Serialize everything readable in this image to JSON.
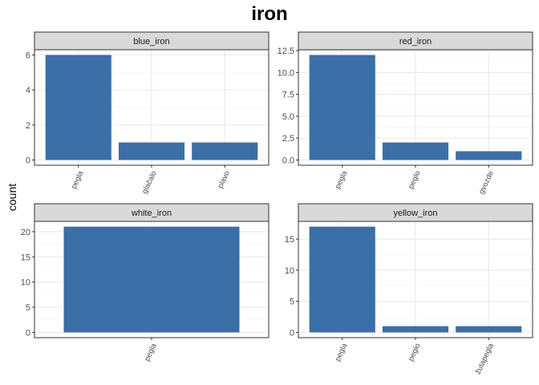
{
  "title": "iron",
  "ylabel": "count",
  "colors": {
    "bar": "#3a6fa8",
    "strip_fill": "#d9d9d9",
    "strip_border": "#333333",
    "grid_major": "#ebebeb",
    "grid_minor": "#f5f5f5",
    "panel_border": "#333333"
  },
  "chart_data": [
    {
      "type": "bar",
      "facet": "blue_iron",
      "categories": [
        "pegla",
        "glačalo",
        "plavo"
      ],
      "values": [
        6,
        1,
        1
      ],
      "ylim": [
        0,
        6.3
      ],
      "yticks": [
        0,
        2,
        4,
        6
      ],
      "ytick_labels": [
        "0",
        "2",
        "4",
        "6"
      ],
      "grid": true
    },
    {
      "type": "bar",
      "facet": "red_iron",
      "categories": [
        "pegla",
        "peglo",
        "gvozde"
      ],
      "values": [
        12,
        2,
        1
      ],
      "ylim": [
        0,
        12.6
      ],
      "yticks": [
        0,
        2.5,
        5,
        7.5,
        10,
        12.5
      ],
      "ytick_labels": [
        "0.0",
        "2.5",
        "5.0",
        "7.5",
        "10.0",
        "12.5"
      ],
      "grid": true
    },
    {
      "type": "bar",
      "facet": "white_iron",
      "categories": [
        "pegla"
      ],
      "values": [
        21
      ],
      "ylim": [
        0,
        22.05
      ],
      "yticks": [
        0,
        5,
        10,
        15,
        20
      ],
      "ytick_labels": [
        "0",
        "5",
        "10",
        "15",
        "20"
      ],
      "grid": true
    },
    {
      "type": "bar",
      "facet": "yellow_iron",
      "categories": [
        "pegla",
        "peglo",
        "žutapegla"
      ],
      "values": [
        17,
        1,
        1
      ],
      "ylim": [
        0,
        17.85
      ],
      "yticks": [
        0,
        5,
        10,
        15
      ],
      "ytick_labels": [
        "0",
        "5",
        "10",
        "15"
      ],
      "grid": true
    }
  ]
}
